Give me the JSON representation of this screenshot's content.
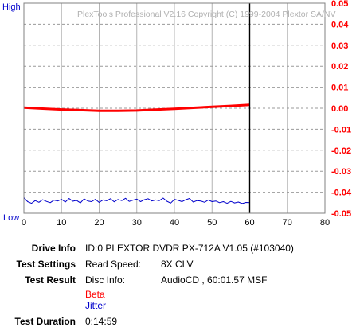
{
  "chart_data": {
    "type": "line",
    "title": "PlexTools Professional V2.16 Copyright (C) 1999-2004 Plextor SA/NV",
    "left_axis": {
      "top_label": "High",
      "bottom_label": "Low"
    },
    "x": {
      "min": 0,
      "max": 80,
      "ticks": [
        "0",
        "10",
        "20",
        "30",
        "40",
        "50",
        "60",
        "70",
        "80"
      ]
    },
    "right_axis": {
      "min": -0.05,
      "max": 0.05,
      "ticks": [
        "0.05",
        "0.04",
        "0.03",
        "0.02",
        "0.01",
        "0.00",
        "-0.01",
        "-0.02",
        "-0.03",
        "-0.04",
        "-0.05"
      ]
    },
    "marker_x": 60,
    "series": [
      {
        "name": "Beta",
        "color": "#ff0000",
        "axis": "right",
        "x": [
          0,
          5,
          10,
          15,
          20,
          25,
          30,
          35,
          40,
          45,
          50,
          55,
          60
        ],
        "y": [
          0.0003,
          -0.0002,
          -0.0006,
          -0.0009,
          -0.0012,
          -0.0012,
          -0.0011,
          -0.0007,
          -0.0003,
          0.0002,
          0.0007,
          0.0011,
          0.0016
        ]
      },
      {
        "name": "Jitter",
        "color": "#0000cc",
        "axis": "left",
        "x": [
          0,
          1,
          2,
          3,
          4,
          5,
          6,
          7,
          8,
          9,
          10,
          11,
          12,
          13,
          14,
          15,
          16,
          17,
          18,
          19,
          20,
          21,
          22,
          23,
          24,
          25,
          26,
          27,
          28,
          29,
          30,
          31,
          32,
          33,
          34,
          35,
          36,
          37,
          38,
          39,
          40,
          41,
          42,
          43,
          44,
          45,
          46,
          47,
          48,
          49,
          50,
          51,
          52,
          53,
          54,
          55,
          56,
          57,
          58,
          59,
          60
        ],
        "y": [
          0.074,
          0.055,
          0.047,
          0.06,
          0.052,
          0.064,
          0.056,
          0.05,
          0.062,
          0.058,
          0.066,
          0.053,
          0.07,
          0.057,
          0.061,
          0.049,
          0.068,
          0.058,
          0.055,
          0.066,
          0.051,
          0.063,
          0.059,
          0.069,
          0.054,
          0.065,
          0.06,
          0.071,
          0.056,
          0.062,
          0.067,
          0.055,
          0.064,
          0.069,
          0.058,
          0.063,
          0.06,
          0.072,
          0.057,
          0.048,
          0.066,
          0.061,
          0.055,
          0.064,
          0.07,
          0.053,
          0.06,
          0.058,
          0.052,
          0.063,
          0.055,
          0.058,
          0.05,
          0.055,
          0.047,
          0.056,
          0.049,
          0.053,
          0.046,
          0.051,
          0.05
        ]
      }
    ]
  },
  "info": {
    "drive_info": {
      "label": "Drive Info",
      "value": "ID:0 PLEXTOR DVDR PX-712A V1.05 (#103040)"
    },
    "test_settings": {
      "label": "Test Settings",
      "name": "Read Speed:",
      "value": "8X CLV"
    },
    "test_result": {
      "label": "Test Result",
      "name": "Disc Info:",
      "value": "AudioCD , 60:01.57 MSF"
    },
    "legend": {
      "beta": "Beta",
      "jitter": "Jitter"
    },
    "test_duration": {
      "label": "Test Duration",
      "value": "0:14:59"
    }
  }
}
